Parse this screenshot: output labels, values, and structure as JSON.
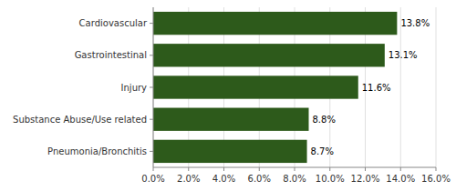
{
  "chart_data": {
    "type": "bar",
    "orientation": "horizontal",
    "categories": [
      "Cardiovascular",
      "Gastrointestinal",
      "Injury",
      "Substance Abuse/Use related",
      "Pneumonia/Bronchitis"
    ],
    "values": [
      13.8,
      13.1,
      11.6,
      8.8,
      8.7
    ],
    "value_labels": [
      "13.8%",
      "13.1%",
      "11.6%",
      "8.8%",
      "8.7%"
    ],
    "data_labels": true,
    "color": "#2d5a1b",
    "xlim": [
      0,
      16.0
    ],
    "xticks": [
      {
        "value": 0,
        "label": "0.0%"
      },
      {
        "value": 2,
        "label": "2.0%"
      },
      {
        "value": 4,
        "label": "4.0%"
      },
      {
        "value": 6,
        "label": "6.0%"
      },
      {
        "value": 8,
        "label": "8.0%"
      },
      {
        "value": 10,
        "label": "10.0%"
      },
      {
        "value": 12,
        "label": "12.0%"
      },
      {
        "value": 14,
        "label": "14.0%"
      },
      {
        "value": 16,
        "label": "16.0%"
      }
    ],
    "grid": true
  }
}
